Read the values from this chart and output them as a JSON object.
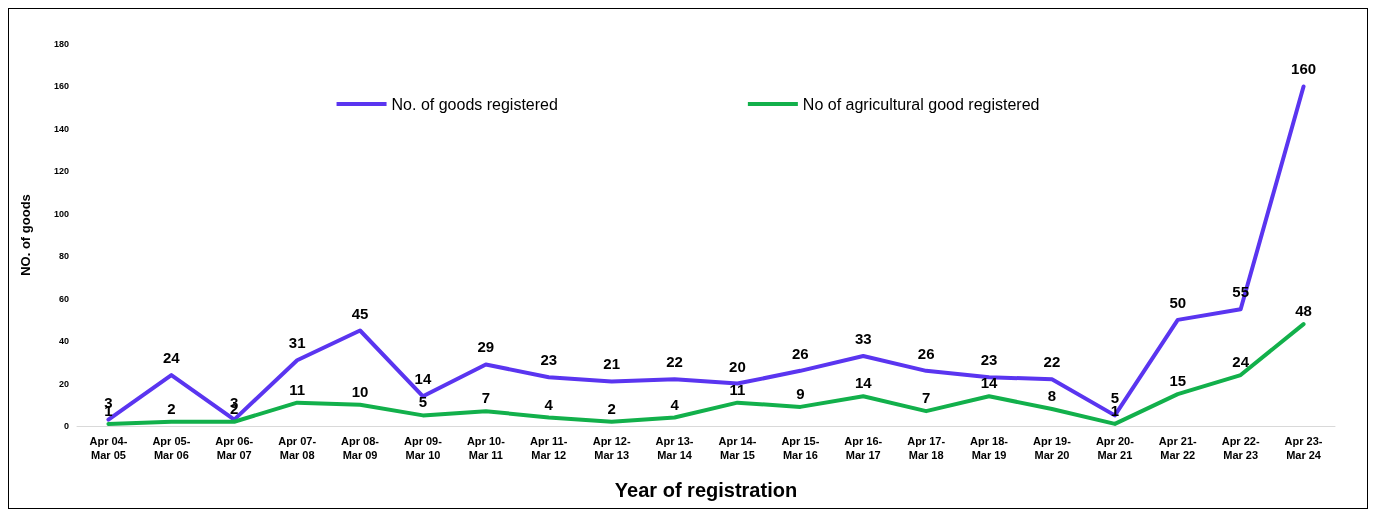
{
  "chart_data": {
    "type": "line",
    "xlabel": "Year of registration",
    "ylabel": "NO. of goods",
    "categories": [
      "Apr 04-Mar 05",
      "Apr 05-Mar 06",
      "Apr 06-Mar 07",
      "Apr 07-Mar 08",
      "Apr 08-Mar 09",
      "Apr 09-Mar 10",
      "Apr 10-Mar 11",
      "Apr 11-Mar 12",
      "Apr 12-Mar 13",
      "Apr 13-Mar 14",
      "Apr 14-Mar 15",
      "Apr 15-Mar 16",
      "Apr 16-Mar 17",
      "Apr 17-Mar 18",
      "Apr 18-Mar 19",
      "Apr 19-Mar 20",
      "Apr 20-Mar 21",
      "Apr 21-Mar 22",
      "Apr 22-Mar 23",
      "Apr 23-Mar 24"
    ],
    "series": [
      {
        "name": "No. of goods registered",
        "color": "#5a35f0",
        "values": [
          3,
          24,
          3,
          31,
          45,
          14,
          29,
          23,
          21,
          22,
          20,
          26,
          33,
          26,
          23,
          22,
          5,
          50,
          55,
          160
        ]
      },
      {
        "name": "No of agricultural good registered",
        "color": "#12b04b",
        "values": [
          1,
          2,
          2,
          11,
          10,
          5,
          7,
          4,
          2,
          4,
          11,
          9,
          14,
          7,
          14,
          8,
          1,
          15,
          24,
          48
        ]
      }
    ],
    "ylim": [
      0,
      180
    ],
    "yticks": [
      0,
      20,
      40,
      60,
      80,
      100,
      120,
      140,
      160,
      180
    ],
    "grid": false,
    "legend": "top",
    "marker": "none",
    "line_style": "solid",
    "data_labels": true
  }
}
